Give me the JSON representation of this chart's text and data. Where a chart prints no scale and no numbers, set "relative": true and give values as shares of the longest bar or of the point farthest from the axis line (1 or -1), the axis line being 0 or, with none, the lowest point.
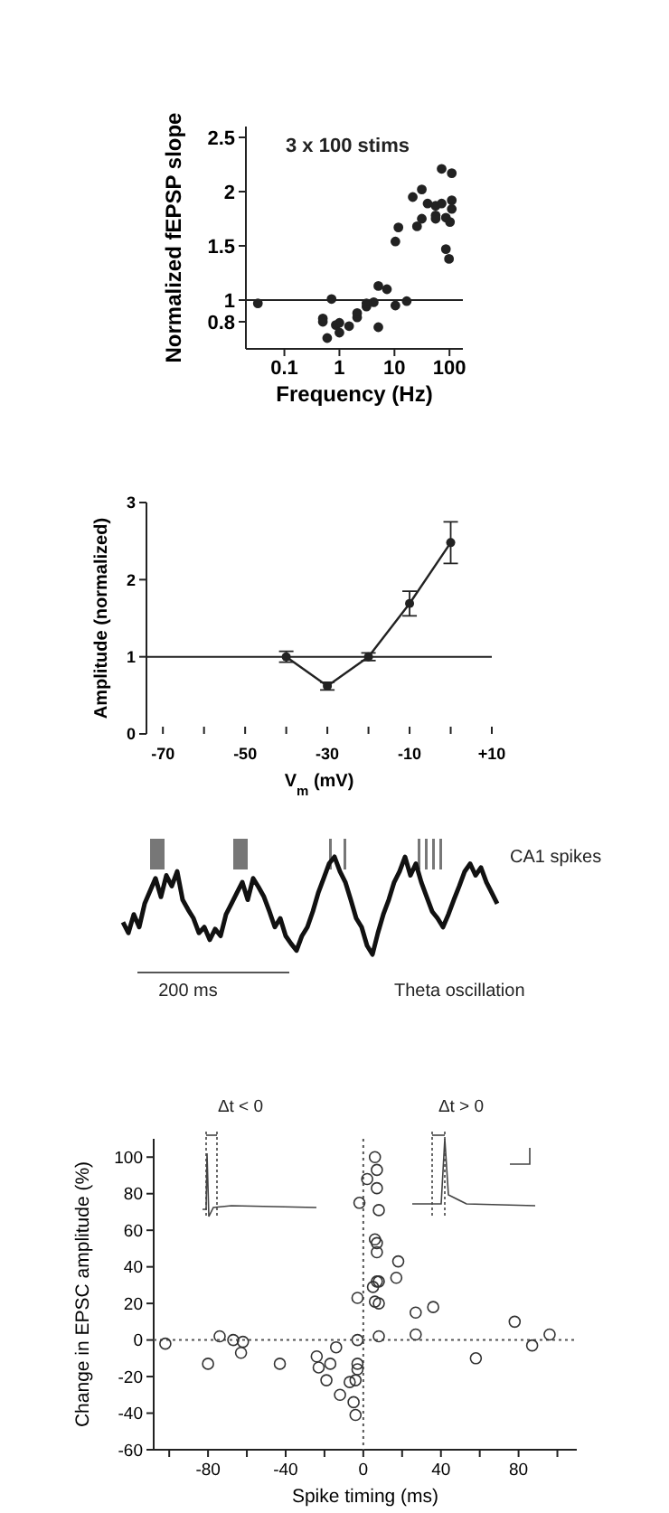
{
  "chart_data": [
    {
      "type": "scatter",
      "xlabel": "Frequency (Hz)",
      "ylabel": "Normalized fEPSP slope",
      "annotations": [
        "3 x 100 stims"
      ],
      "log": "x",
      "marker": "circle",
      "xlim": [
        0.02,
        175
      ],
      "ylim": [
        0.55,
        2.6
      ],
      "xticks": [
        0.1,
        1,
        10,
        100
      ],
      "yticks": [
        0.8,
        1,
        1.5,
        2,
        2.5
      ],
      "ref_lines": [
        {
          "axis": "y",
          "value": 1,
          "color": "#222222",
          "line_style": "solid"
        }
      ],
      "series": [
        {
          "color": "#222222",
          "x": [
            0.033,
            0.72,
            0.5,
            0.5,
            0.6,
            0.86,
            1.0,
            1.0,
            1.5,
            2.1,
            2.1,
            3.1,
            3.1,
            4.2,
            5.1,
            7.3,
            5.1,
            10.4,
            16.7,
            10.4,
            11.8,
            21.5,
            31.4,
            25.7,
            31.4,
            40,
            56,
            56,
            56,
            72,
            72,
            86,
            86,
            98,
            102,
            110,
            110,
            110
          ],
          "values": [
            0.97,
            1.01,
            0.83,
            0.8,
            0.65,
            0.77,
            0.79,
            0.7,
            0.76,
            0.84,
            0.88,
            0.94,
            0.97,
            0.98,
            1.13,
            1.1,
            0.75,
            0.95,
            0.99,
            1.54,
            1.67,
            1.95,
            2.02,
            1.68,
            1.75,
            1.89,
            1.87,
            1.78,
            1.75,
            1.89,
            2.21,
            1.76,
            1.47,
            1.38,
            1.72,
            1.92,
            1.84,
            2.17
          ]
        }
      ]
    },
    {
      "type": "line",
      "xlabel": "V$_{m}$ (mV)",
      "ylabel": "Amplitude (normalized)",
      "marker": "circle",
      "xlim": [
        -74,
        10
      ],
      "ylim": [
        0,
        3
      ],
      "xticks": [
        -70,
        {
          "value": -60,
          "label": null
        },
        -50,
        {
          "value": -40,
          "label": null
        },
        -30,
        {
          "value": -20,
          "label": null
        },
        -10,
        {
          "value": 0,
          "label": null
        },
        {
          "value": 10,
          "label": "+10"
        }
      ],
      "yticks": [
        0,
        1,
        2,
        3
      ],
      "ref_lines": [
        {
          "axis": "y",
          "value": 1,
          "color": "#222222",
          "line_style": "solid"
        }
      ],
      "series": [
        {
          "color": "#222222",
          "x": [
            -40,
            -30,
            -20,
            -10,
            0
          ],
          "values": [
            1.0,
            0.62,
            1.0,
            1.69,
            2.48
          ],
          "errors": [
            0.07,
            0.05,
            0.05,
            0.16,
            0.27
          ]
        }
      ]
    },
    {
      "type": "line",
      "relative": true,
      "annotations": [
        "CA1 spikes",
        "200 ms",
        "Theta oscillation"
      ],
      "categories": [
        null,
        null,
        null,
        null,
        null,
        null,
        null,
        null,
        null,
        null,
        null,
        null,
        null,
        null,
        null,
        null,
        null,
        null,
        null,
        null,
        null,
        null,
        null,
        null,
        null,
        null,
        null,
        null,
        null,
        null,
        null,
        null,
        null,
        null,
        null,
        null,
        null,
        null,
        null,
        null,
        null,
        null,
        null,
        null,
        null,
        null,
        null,
        null,
        null,
        null,
        null,
        null,
        null,
        null,
        null,
        null,
        null,
        null,
        null,
        null,
        null,
        null,
        null,
        null,
        null,
        null,
        null,
        null,
        null,
        null
      ],
      "series": [
        {
          "color": "#111111",
          "values": [
            0.33,
            0.22,
            0.41,
            0.28,
            0.52,
            0.65,
            0.78,
            0.59,
            0.81,
            0.7,
            0.85,
            0.56,
            0.46,
            0.37,
            0.22,
            0.28,
            0.15,
            0.26,
            0.19,
            0.41,
            0.52,
            0.63,
            0.74,
            0.56,
            0.78,
            0.69,
            0.59,
            0.44,
            0.28,
            0.37,
            0.19,
            0.11,
            0.04,
            0.19,
            0.28,
            0.44,
            0.63,
            0.78,
            0.93,
            1,
            0.85,
            0.74,
            0.56,
            0.37,
            0.28,
            0.09,
            0,
            0.22,
            0.41,
            0.56,
            0.74,
            0.85,
            1,
            0.81,
            0.93,
            0.74,
            0.59,
            0.44,
            0.37,
            0.28,
            0.41,
            0.56,
            0.7,
            0.85,
            0.93,
            0.81,
            0.89,
            0.74,
            0.63,
            0.52
          ]
        }
      ]
    },
    {
      "type": "scatter",
      "xlabel": "Spike timing (ms)",
      "ylabel": "Change in EPSC amplitude (%)",
      "annotations": [
        "Δt < 0",
        "Δt > 0"
      ],
      "marker": "circle",
      "xlim": [
        -108,
        110
      ],
      "ylim": [
        -60,
        110
      ],
      "xticks": [
        {
          "value": -100,
          "label": null
        },
        -80,
        {
          "value": -60,
          "label": null
        },
        -40,
        {
          "value": -20,
          "label": null
        },
        0,
        {
          "value": 20,
          "label": null
        },
        40,
        {
          "value": 60,
          "label": null
        },
        80,
        {
          "value": 100,
          "label": null
        }
      ],
      "yticks": [
        -60,
        -40,
        -20,
        0,
        20,
        40,
        60,
        80,
        100
      ],
      "ref_lines": [
        {
          "axis": "x",
          "value": 0,
          "color": "#555555",
          "line_style": "dotted"
        },
        {
          "axis": "y",
          "value": 0,
          "color": "#555555",
          "line_style": "dotted"
        }
      ],
      "series": [
        {
          "color": "#333333",
          "x": [
            -102,
            -80,
            -74,
            -67,
            -62,
            -63,
            -43,
            -24,
            -23,
            -14,
            -17,
            -19,
            -12,
            -7,
            -5,
            -4,
            -3,
            -3,
            -4,
            -3,
            -3,
            -2,
            2,
            6,
            7,
            7,
            8,
            6,
            7,
            7,
            5,
            7,
            8,
            6,
            8,
            8,
            18,
            17,
            27,
            27,
            36,
            58,
            78,
            87,
            96
          ],
          "values": [
            -2,
            -13,
            2,
            0,
            -1,
            -7,
            -13,
            -9,
            -15,
            -4,
            -13,
            -22,
            -30,
            -23,
            -34,
            -22,
            -13,
            -16,
            -41,
            0,
            23,
            75,
            88,
            100,
            93,
            83,
            71,
            55,
            53,
            48,
            29,
            32,
            32,
            21,
            20,
            2,
            43,
            34,
            15,
            3,
            18,
            -10,
            10,
            -3,
            3
          ]
        }
      ]
    }
  ]
}
